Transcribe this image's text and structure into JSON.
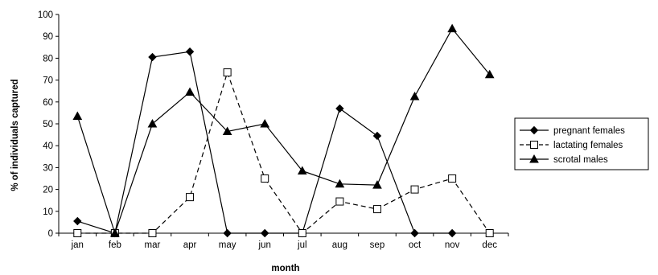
{
  "chart_data": {
    "type": "line",
    "title": "",
    "xlabel": "month",
    "ylabel": "% of individuals captured",
    "categories": [
      "jan",
      "feb",
      "mar",
      "apr",
      "may",
      "jun",
      "jul",
      "aug",
      "sep",
      "oct",
      "nov",
      "dec"
    ],
    "ylim": [
      0,
      100
    ],
    "yticks": [
      0,
      10,
      20,
      30,
      40,
      50,
      60,
      70,
      80,
      90,
      100
    ],
    "grid": false,
    "legend_position": "right",
    "series": [
      {
        "name": "pregnant females",
        "marker": "diamond",
        "line_style": "solid",
        "color": "#000000",
        "values": [
          5.5,
          0,
          80.5,
          83,
          0,
          0,
          0,
          57,
          44.5,
          0,
          0,
          null
        ]
      },
      {
        "name": "lactating females",
        "marker": "square-open",
        "line_style": "dashed",
        "color": "#000000",
        "values": [
          0,
          0,
          0,
          16.5,
          73.5,
          25,
          0,
          14.5,
          11,
          20,
          25,
          0
        ]
      },
      {
        "name": "scrotal males",
        "marker": "triangle",
        "line_style": "solid",
        "color": "#000000",
        "values": [
          53.5,
          0,
          50,
          64.5,
          46.5,
          50,
          28.5,
          22.5,
          22,
          62.5,
          93.5,
          72.5
        ]
      }
    ]
  }
}
